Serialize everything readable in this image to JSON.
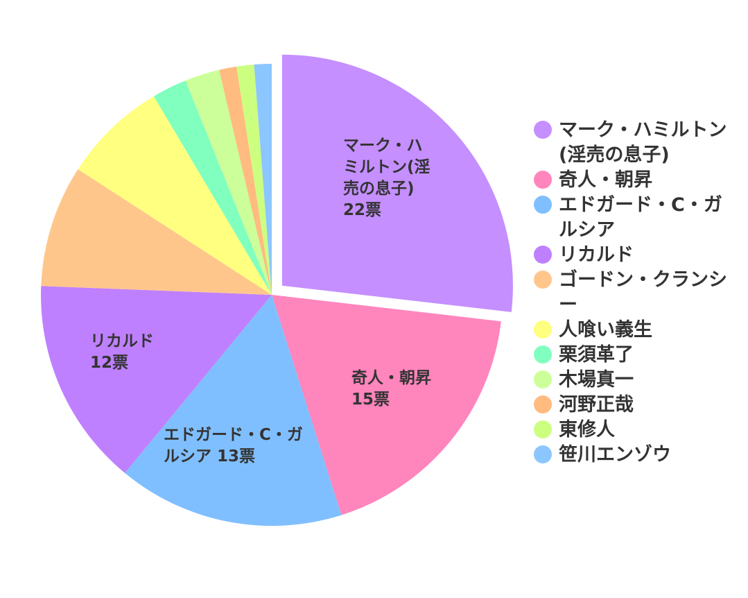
{
  "chart_data": {
    "type": "pie",
    "unit": "票",
    "exploded_index": 0,
    "slices": [
      {
        "name": "マーク・ハミルトン(淫売の息子)",
        "value": 22,
        "color": "#c58fff",
        "label_lines": [
          "マーク・ハ",
          "ミルトン(淫",
          "売の息子)",
          "22票"
        ]
      },
      {
        "name": "奇人・朝昇",
        "value": 15,
        "color": "#ff85bd",
        "label_lines": [
          "奇人・朝昇",
          "15票"
        ]
      },
      {
        "name": "エドガード・C・ガルシア",
        "value": 13,
        "color": "#80bfff",
        "label_lines": [
          "エドガード・C・ガ",
          "ルシア  13票"
        ]
      },
      {
        "name": "リカルド",
        "value": 12,
        "color": "#bf80ff",
        "label_lines": [
          "リカルド",
          "12票"
        ]
      },
      {
        "name": "ゴードン・クランシー",
        "value": 7,
        "color": "#ffc68c",
        "label_lines": []
      },
      {
        "name": "人喰い義生",
        "value": 6,
        "color": "#ffff80",
        "label_lines": []
      },
      {
        "name": "栗須革了",
        "value": 2,
        "color": "#80ffbf",
        "label_lines": []
      },
      {
        "name": "木場真一",
        "value": 2,
        "color": "#ccff99",
        "label_lines": []
      },
      {
        "name": "河野正哉",
        "value": 1,
        "color": "#ffbb80",
        "label_lines": []
      },
      {
        "name": "東修人",
        "value": 1,
        "color": "#ccff80",
        "label_lines": []
      },
      {
        "name": "笹川エンゾウ",
        "value": 1,
        "color": "#8cc6ff",
        "label_lines": []
      }
    ],
    "legend_position": "right"
  }
}
